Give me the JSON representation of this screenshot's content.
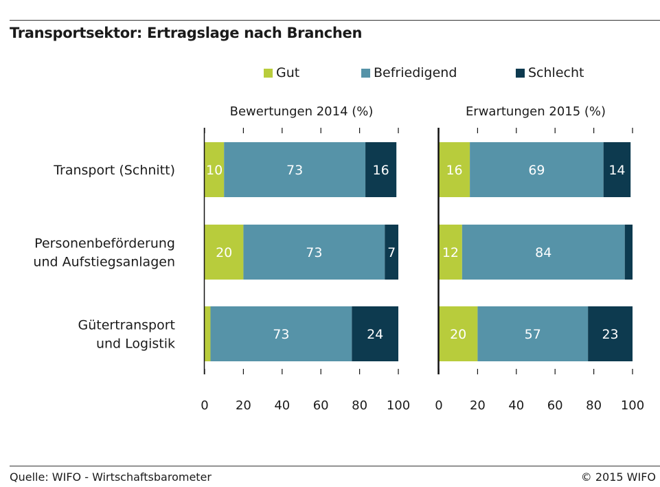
{
  "chart_data": {
    "type": "bar",
    "orientation": "horizontal",
    "stacked": true,
    "title": "Transportsektor: Ertragslage nach Branchen",
    "categories": [
      [
        "Transport (Schnitt)"
      ],
      [
        "Personenbeförderung",
        "und Aufstiegsanlagen"
      ],
      [
        "Gütertransport",
        "und Logistik"
      ]
    ],
    "legend": {
      "placement": "top",
      "items": [
        {
          "name": "Gut",
          "color": "#b8cc3c"
        },
        {
          "name": "Befriedigend",
          "color": "#5693a8"
        },
        {
          "name": "Schlecht",
          "color": "#0d3a4f"
        }
      ]
    },
    "xlim": [
      0,
      100
    ],
    "xticks": [
      "0",
      "20",
      "40",
      "60",
      "80",
      "100"
    ],
    "panels": [
      {
        "title": "Bewertungen 2014 (%)",
        "series": [
          {
            "name": "Gut",
            "values": [
              10,
              20,
              3
            ],
            "labels": [
              "10",
              "20",
              ""
            ]
          },
          {
            "name": "Befriedigend",
            "values": [
              73,
              73,
              73
            ],
            "labels": [
              "73",
              "73",
              "73"
            ]
          },
          {
            "name": "Schlecht",
            "values": [
              16,
              7,
              24
            ],
            "labels": [
              "16",
              "7",
              "24"
            ]
          }
        ]
      },
      {
        "title": "Erwartungen 2015 (%)",
        "series": [
          {
            "name": "Gut",
            "values": [
              16,
              12,
              20
            ],
            "labels": [
              "16",
              "12",
              "20"
            ]
          },
          {
            "name": "Befriedigend",
            "values": [
              69,
              84,
              57
            ],
            "labels": [
              "69",
              "84",
              "57"
            ]
          },
          {
            "name": "Schlecht",
            "values": [
              14,
              4,
              23
            ],
            "labels": [
              "14",
              "",
              "23"
            ]
          }
        ]
      }
    ]
  },
  "footer": {
    "source": "Quelle: WIFO - Wirtschaftsbarometer",
    "copyright": "© 2015 WIFO"
  }
}
